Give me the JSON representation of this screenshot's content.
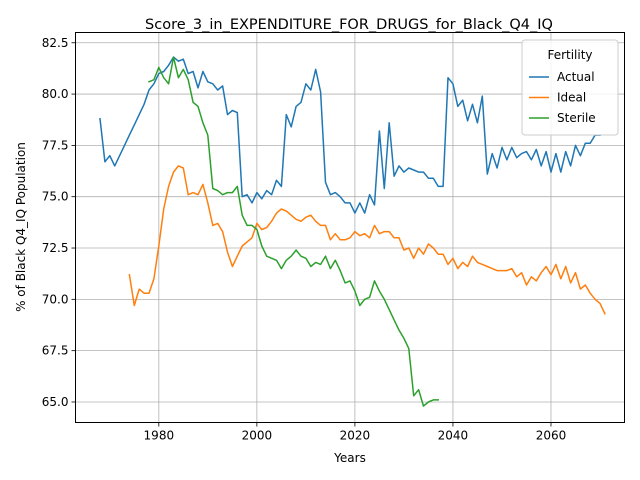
{
  "chart_data": {
    "type": "line",
    "title": "Score_3_in_EXPENDITURE_FOR_DRUGS_for_Black_Q4_IQ",
    "xlabel": "Years",
    "ylabel": "% of Black Q4_IQ Population",
    "xlim": [
      1963,
      2075
    ],
    "ylim": [
      64.0,
      83.0
    ],
    "xticks": [
      1980,
      2000,
      2020,
      2040,
      2060
    ],
    "yticks": [
      65.0,
      67.5,
      70.0,
      72.5,
      75.0,
      77.5,
      80.0,
      82.5
    ],
    "grid": true,
    "legend": {
      "title": "Fertility",
      "position": "top-right"
    },
    "series": [
      {
        "name": "Actual",
        "color": "#1f77b4",
        "points": [
          [
            1968,
            78.8
          ],
          [
            1969,
            76.7
          ],
          [
            1970,
            77.0
          ],
          [
            1971,
            76.5
          ],
          [
            1972,
            77.0
          ],
          [
            1973,
            77.5
          ],
          [
            1974,
            78.0
          ],
          [
            1975,
            78.5
          ],
          [
            1976,
            79.0
          ],
          [
            1977,
            79.5
          ],
          [
            1978,
            80.2
          ],
          [
            1979,
            80.5
          ],
          [
            1980,
            81.0
          ],
          [
            1981,
            81.1
          ],
          [
            1982,
            81.4
          ],
          [
            1983,
            81.8
          ],
          [
            1984,
            81.6
          ],
          [
            1985,
            81.7
          ],
          [
            1986,
            81.0
          ],
          [
            1987,
            81.1
          ],
          [
            1988,
            80.3
          ],
          [
            1989,
            81.1
          ],
          [
            1990,
            80.6
          ],
          [
            1991,
            80.5
          ],
          [
            1992,
            80.2
          ],
          [
            1993,
            80.4
          ],
          [
            1994,
            79.0
          ],
          [
            1995,
            79.2
          ],
          [
            1996,
            79.1
          ],
          [
            1997,
            75.0
          ],
          [
            1998,
            75.1
          ],
          [
            1999,
            74.7
          ],
          [
            2000,
            75.2
          ],
          [
            2001,
            74.9
          ],
          [
            2002,
            75.3
          ],
          [
            2003,
            75.1
          ],
          [
            2004,
            75.8
          ],
          [
            2005,
            75.5
          ],
          [
            2006,
            79.0
          ],
          [
            2007,
            78.4
          ],
          [
            2008,
            79.4
          ],
          [
            2009,
            79.6
          ],
          [
            2010,
            80.5
          ],
          [
            2011,
            80.2
          ],
          [
            2012,
            81.2
          ],
          [
            2013,
            80.1
          ],
          [
            2014,
            75.7
          ],
          [
            2015,
            75.1
          ],
          [
            2016,
            75.2
          ],
          [
            2017,
            75.0
          ],
          [
            2018,
            74.7
          ],
          [
            2019,
            74.7
          ],
          [
            2020,
            74.2
          ],
          [
            2021,
            74.7
          ],
          [
            2022,
            74.2
          ],
          [
            2023,
            75.1
          ],
          [
            2024,
            74.6
          ],
          [
            2025,
            78.2
          ],
          [
            2026,
            75.4
          ],
          [
            2027,
            78.6
          ],
          [
            2028,
            76.0
          ],
          [
            2029,
            76.5
          ],
          [
            2030,
            76.2
          ],
          [
            2031,
            76.4
          ],
          [
            2032,
            76.3
          ],
          [
            2033,
            76.2
          ],
          [
            2034,
            76.2
          ],
          [
            2035,
            75.9
          ],
          [
            2036,
            75.9
          ],
          [
            2037,
            75.5
          ],
          [
            2038,
            75.5
          ],
          [
            2039,
            80.8
          ],
          [
            2040,
            80.5
          ],
          [
            2041,
            79.4
          ],
          [
            2042,
            79.7
          ],
          [
            2043,
            78.7
          ],
          [
            2044,
            79.5
          ],
          [
            2045,
            78.6
          ],
          [
            2046,
            79.9
          ],
          [
            2047,
            76.1
          ],
          [
            2048,
            77.1
          ],
          [
            2049,
            76.4
          ],
          [
            2050,
            77.4
          ],
          [
            2051,
            76.8
          ],
          [
            2052,
            77.4
          ],
          [
            2053,
            76.9
          ],
          [
            2054,
            77.1
          ],
          [
            2055,
            77.2
          ],
          [
            2056,
            76.8
          ],
          [
            2057,
            77.3
          ],
          [
            2058,
            76.5
          ],
          [
            2059,
            77.2
          ],
          [
            2060,
            76.2
          ],
          [
            2061,
            77.1
          ],
          [
            2062,
            76.2
          ],
          [
            2063,
            77.2
          ],
          [
            2064,
            76.5
          ],
          [
            2065,
            77.5
          ],
          [
            2066,
            77.0
          ],
          [
            2067,
            77.6
          ],
          [
            2068,
            77.6
          ],
          [
            2069,
            78.0
          ],
          [
            2070,
            78.0
          ]
        ]
      },
      {
        "name": "Ideal",
        "color": "#ff7f0e",
        "points": [
          [
            1974,
            71.2
          ],
          [
            1975,
            69.7
          ],
          [
            1976,
            70.5
          ],
          [
            1977,
            70.3
          ],
          [
            1978,
            70.3
          ],
          [
            1979,
            71.0
          ],
          [
            1980,
            72.6
          ],
          [
            1981,
            74.4
          ],
          [
            1982,
            75.5
          ],
          [
            1983,
            76.2
          ],
          [
            1984,
            76.5
          ],
          [
            1985,
            76.4
          ],
          [
            1986,
            75.1
          ],
          [
            1987,
            75.2
          ],
          [
            1988,
            75.1
          ],
          [
            1989,
            75.6
          ],
          [
            1990,
            74.7
          ],
          [
            1991,
            73.6
          ],
          [
            1992,
            73.7
          ],
          [
            1993,
            73.3
          ],
          [
            1994,
            72.3
          ],
          [
            1995,
            71.6
          ],
          [
            1996,
            72.1
          ],
          [
            1997,
            72.6
          ],
          [
            1998,
            72.8
          ],
          [
            1999,
            73.0
          ],
          [
            2000,
            73.7
          ],
          [
            2001,
            73.4
          ],
          [
            2002,
            73.5
          ],
          [
            2003,
            73.8
          ],
          [
            2004,
            74.2
          ],
          [
            2005,
            74.4
          ],
          [
            2006,
            74.3
          ],
          [
            2007,
            74.1
          ],
          [
            2008,
            73.9
          ],
          [
            2009,
            73.8
          ],
          [
            2010,
            74.0
          ],
          [
            2011,
            74.1
          ],
          [
            2012,
            73.8
          ],
          [
            2013,
            73.6
          ],
          [
            2014,
            73.6
          ],
          [
            2015,
            72.9
          ],
          [
            2016,
            73.2
          ],
          [
            2017,
            72.9
          ],
          [
            2018,
            72.9
          ],
          [
            2019,
            73.0
          ],
          [
            2020,
            73.3
          ],
          [
            2021,
            73.1
          ],
          [
            2022,
            73.2
          ],
          [
            2023,
            73.0
          ],
          [
            2024,
            73.6
          ],
          [
            2025,
            73.2
          ],
          [
            2026,
            73.3
          ],
          [
            2027,
            73.3
          ],
          [
            2028,
            73.0
          ],
          [
            2029,
            73.0
          ],
          [
            2030,
            72.4
          ],
          [
            2031,
            72.5
          ],
          [
            2032,
            72.0
          ],
          [
            2033,
            72.5
          ],
          [
            2034,
            72.2
          ],
          [
            2035,
            72.7
          ],
          [
            2036,
            72.5
          ],
          [
            2037,
            72.2
          ],
          [
            2038,
            72.2
          ],
          [
            2039,
            71.7
          ],
          [
            2040,
            72.0
          ],
          [
            2041,
            71.5
          ],
          [
            2042,
            71.8
          ],
          [
            2043,
            71.6
          ],
          [
            2044,
            72.1
          ],
          [
            2045,
            71.8
          ],
          [
            2046,
            71.7
          ],
          [
            2047,
            71.6
          ],
          [
            2048,
            71.5
          ],
          [
            2049,
            71.4
          ],
          [
            2050,
            71.4
          ],
          [
            2051,
            71.4
          ],
          [
            2052,
            71.5
          ],
          [
            2053,
            71.1
          ],
          [
            2054,
            71.3
          ],
          [
            2055,
            70.7
          ],
          [
            2056,
            71.1
          ],
          [
            2057,
            70.9
          ],
          [
            2058,
            71.3
          ],
          [
            2059,
            71.6
          ],
          [
            2060,
            71.2
          ],
          [
            2061,
            71.7
          ],
          [
            2062,
            71.0
          ],
          [
            2063,
            71.6
          ],
          [
            2064,
            70.8
          ],
          [
            2065,
            71.3
          ],
          [
            2066,
            70.5
          ],
          [
            2067,
            70.7
          ],
          [
            2068,
            70.3
          ],
          [
            2069,
            70.0
          ],
          [
            2070,
            69.8
          ],
          [
            2071,
            69.3
          ]
        ]
      },
      {
        "name": "Sterile",
        "color": "#2ca02c",
        "points": [
          [
            1978,
            80.6
          ],
          [
            1979,
            80.7
          ],
          [
            1980,
            81.3
          ],
          [
            1981,
            80.8
          ],
          [
            1982,
            80.5
          ],
          [
            1983,
            81.8
          ],
          [
            1984,
            80.8
          ],
          [
            1985,
            81.2
          ],
          [
            1986,
            80.7
          ],
          [
            1987,
            79.6
          ],
          [
            1988,
            79.4
          ],
          [
            1989,
            78.6
          ],
          [
            1990,
            78.0
          ],
          [
            1991,
            75.4
          ],
          [
            1992,
            75.3
          ],
          [
            1993,
            75.1
          ],
          [
            1994,
            75.2
          ],
          [
            1995,
            75.2
          ],
          [
            1996,
            75.5
          ],
          [
            1997,
            74.1
          ],
          [
            1998,
            73.6
          ],
          [
            1999,
            73.6
          ],
          [
            2000,
            73.4
          ],
          [
            2001,
            72.6
          ],
          [
            2002,
            72.1
          ],
          [
            2003,
            72.0
          ],
          [
            2004,
            71.9
          ],
          [
            2005,
            71.5
          ],
          [
            2006,
            71.9
          ],
          [
            2007,
            72.1
          ],
          [
            2008,
            72.4
          ],
          [
            2009,
            72.1
          ],
          [
            2010,
            72.0
          ],
          [
            2011,
            71.6
          ],
          [
            2012,
            71.8
          ],
          [
            2013,
            71.7
          ],
          [
            2014,
            72.1
          ],
          [
            2015,
            71.5
          ],
          [
            2016,
            71.9
          ],
          [
            2017,
            71.4
          ],
          [
            2018,
            70.8
          ],
          [
            2019,
            70.9
          ],
          [
            2020,
            70.4
          ],
          [
            2021,
            69.7
          ],
          [
            2022,
            70.0
          ],
          [
            2023,
            70.1
          ],
          [
            2024,
            70.9
          ],
          [
            2025,
            70.4
          ],
          [
            2026,
            70.0
          ],
          [
            2027,
            69.5
          ],
          [
            2028,
            69.0
          ],
          [
            2029,
            68.5
          ],
          [
            2030,
            68.1
          ],
          [
            2031,
            67.6
          ],
          [
            2032,
            65.3
          ],
          [
            2033,
            65.6
          ],
          [
            2034,
            64.8
          ],
          [
            2035,
            65.0
          ],
          [
            2036,
            65.1
          ],
          [
            2037,
            65.1
          ]
        ]
      }
    ]
  }
}
